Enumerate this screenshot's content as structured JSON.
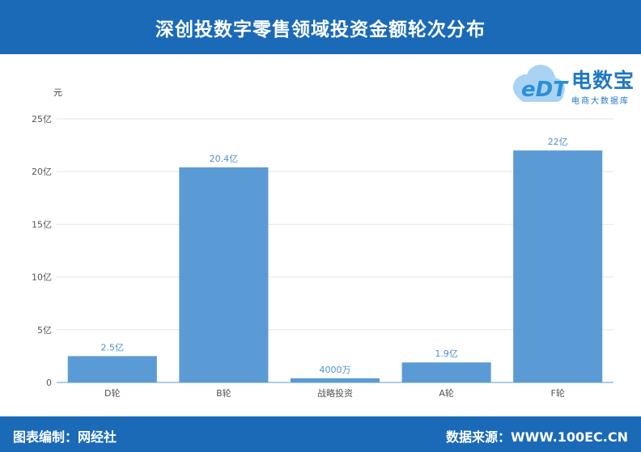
{
  "header": {
    "title": "深创投数字零售领域投资金额轮次分布"
  },
  "logo": {
    "name": "电数宝",
    "subtitle": "电商大数据库",
    "letters": "eDT"
  },
  "footer": {
    "left": "图表编制：网经社",
    "right": "数据来源：WWW.100EC.CN"
  },
  "chart_data": {
    "type": "bar",
    "title": "深创投数字零售领域投资金额轮次分布",
    "ylabel": "元",
    "xlabel": "",
    "categories": [
      "D轮",
      "B轮",
      "战略投资",
      "A轮",
      "F轮"
    ],
    "values": [
      250000000,
      2040000000,
      40000000,
      190000000,
      2200000000
    ],
    "data_labels": [
      "2.5亿",
      "20.4亿",
      "4000万",
      "1.9亿",
      "22亿"
    ],
    "ylim": [
      0,
      2500000000
    ],
    "yticks": [
      0,
      500000000,
      1000000000,
      1500000000,
      2000000000,
      2500000000
    ],
    "ytick_labels": [
      "0",
      "5亿",
      "10亿",
      "15亿",
      "20亿",
      "25亿"
    ],
    "grid": true,
    "bar_color": "#5b9bd5"
  }
}
